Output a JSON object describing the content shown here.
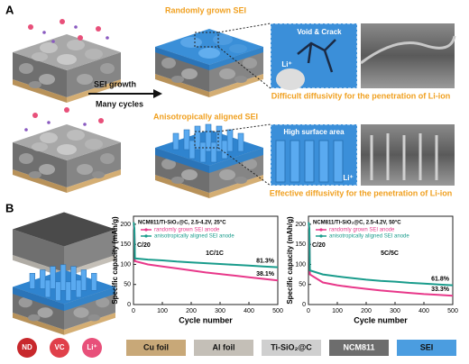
{
  "panel_a": {
    "label": "A",
    "random_title": "Randomly grown SEI",
    "aligned_title": "Anisotropically aligned SEI",
    "arrow_top": "SEI growth",
    "arrow_bottom": "Many cycles",
    "void_label": "Void & Crack",
    "li_label_1": "Li⁺",
    "difficult_caption": "Difficult diffusivity for the penetration of Li-ion",
    "surface_label": "High surface area",
    "li_label_2": "Li⁺",
    "effective_caption": "Effective diffusivity for the penetration of Li-ion"
  },
  "panel_b": {
    "label": "B"
  },
  "chart_data": [
    {
      "type": "line",
      "title": "NCM811/Ti-SiO₂@C, 2.5-4.2V, 25°C",
      "x_label": "Cycle number",
      "y_label": "Specific capacity (mAh/g)",
      "formation_label": "C/20",
      "rate_label": "1C/1C",
      "x": [
        1,
        2,
        3,
        5,
        50,
        100,
        150,
        200,
        250,
        300,
        350,
        400,
        450,
        500
      ],
      "series": [
        {
          "name": "randomly grown SEI anode",
          "color": "#e8388a",
          "end_label": "38.1%",
          "values": [
            200,
            190,
            185,
            108,
            100,
            95,
            90,
            85,
            80,
            76,
            72,
            68,
            64,
            60
          ]
        },
        {
          "name": "anisotropically aligned SEI anode",
          "color": "#1a9c8c",
          "end_label": "81.3%",
          "values": [
            205,
            195,
            190,
            115,
            112,
            110,
            107,
            105,
            103,
            101,
            99,
            97,
            95,
            93
          ]
        }
      ],
      "xlim": [
        0,
        500
      ],
      "xticks": [
        0,
        100,
        200,
        300,
        400,
        500
      ],
      "ylim": [
        0,
        220
      ],
      "yticks": [
        0,
        50,
        100,
        150,
        200
      ]
    },
    {
      "type": "line",
      "title": "NCM811/Ti-SiO₂@C, 2.5-4.2V, 50°C",
      "x_label": "Cycle number",
      "y_label": "Specific capacity (mAh/g)",
      "formation_label": "C/20",
      "rate_label": "5C/5C",
      "x": [
        1,
        2,
        3,
        5,
        50,
        100,
        150,
        200,
        250,
        300,
        350,
        400,
        450,
        500
      ],
      "series": [
        {
          "name": "randomly grown SEI anode",
          "color": "#e8388a",
          "end_label": "33.3%",
          "values": [
            200,
            192,
            186,
            75,
            55,
            48,
            43,
            39,
            35,
            32,
            29,
            26,
            24,
            22
          ]
        },
        {
          "name": "anisotropically aligned SEI anode",
          "color": "#1a9c8c",
          "end_label": "61.8%",
          "values": [
            205,
            196,
            190,
            85,
            75,
            70,
            66,
            62,
            59,
            57,
            54,
            52,
            50,
            48
          ]
        }
      ],
      "xlim": [
        0,
        500
      ],
      "xticks": [
        0,
        100,
        200,
        300,
        400,
        500
      ],
      "ylim": [
        0,
        220
      ],
      "yticks": [
        0,
        50,
        100,
        150,
        200
      ]
    }
  ],
  "legend_row": [
    {
      "label": "ND",
      "color": "#c8282c",
      "shape": "circle"
    },
    {
      "label": "VC",
      "color": "#e0404a",
      "shape": "circle"
    },
    {
      "label": "Li⁺",
      "color": "#e8507a",
      "shape": "circle"
    },
    {
      "label": "Cu foil",
      "color": "#c8a878",
      "shape": "box"
    },
    {
      "label": "Al foil",
      "color": "#c4bfb7",
      "shape": "box"
    },
    {
      "label": "Ti-SiO₂@C",
      "color": "#cfcfcf",
      "shape": "box"
    },
    {
      "label": "NCM811",
      "color": "#6d6d6d",
      "shape": "box"
    },
    {
      "label": "SEI",
      "color": "#4b9de0",
      "shape": "box"
    }
  ]
}
